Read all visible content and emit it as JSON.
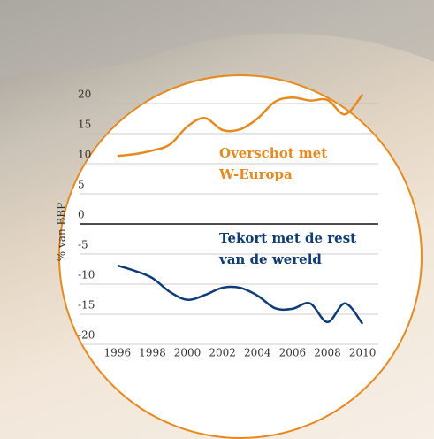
{
  "chart_data": {
    "type": "line",
    "y_label": "% van BBP",
    "x": [
      1996,
      1997,
      1998,
      1999,
      2000,
      2001,
      2002,
      2003,
      2004,
      2005,
      2006,
      2007,
      2008,
      2009,
      2010
    ],
    "series": [
      {
        "color": "#e8891e",
        "values": [
          11.3,
          11.6,
          12.2,
          13.2,
          16.2,
          17.6,
          15.6,
          15.7,
          17.5,
          20.3,
          21.0,
          20.5,
          20.6,
          18.2,
          21.5
        ]
      },
      {
        "color": "#0d3c78",
        "values": [
          -6.9,
          -7.8,
          -9.0,
          -11.3,
          -12.6,
          -11.8,
          -10.6,
          -10.6,
          -11.9,
          -14.0,
          -14.1,
          -13.2,
          -16.3,
          -13.2,
          -16.6
        ]
      }
    ],
    "annotations": [
      {
        "lines": [
          "Overschot met",
          "W-Europa"
        ],
        "color": "#e8891e"
      },
      {
        "lines": [
          "Tekort met de rest",
          "van de wereld"
        ],
        "color": "#0d3c78"
      }
    ],
    "xlim": [
      1995.1,
      2010.9
    ],
    "ylim": [
      -20,
      20
    ],
    "xticks": [
      1996,
      1998,
      2000,
      2002,
      2004,
      2006,
      2008,
      2010
    ],
    "yticks": [
      20,
      15,
      10,
      5,
      0,
      -5,
      -10,
      -15,
      -20
    ],
    "grid": true
  }
}
